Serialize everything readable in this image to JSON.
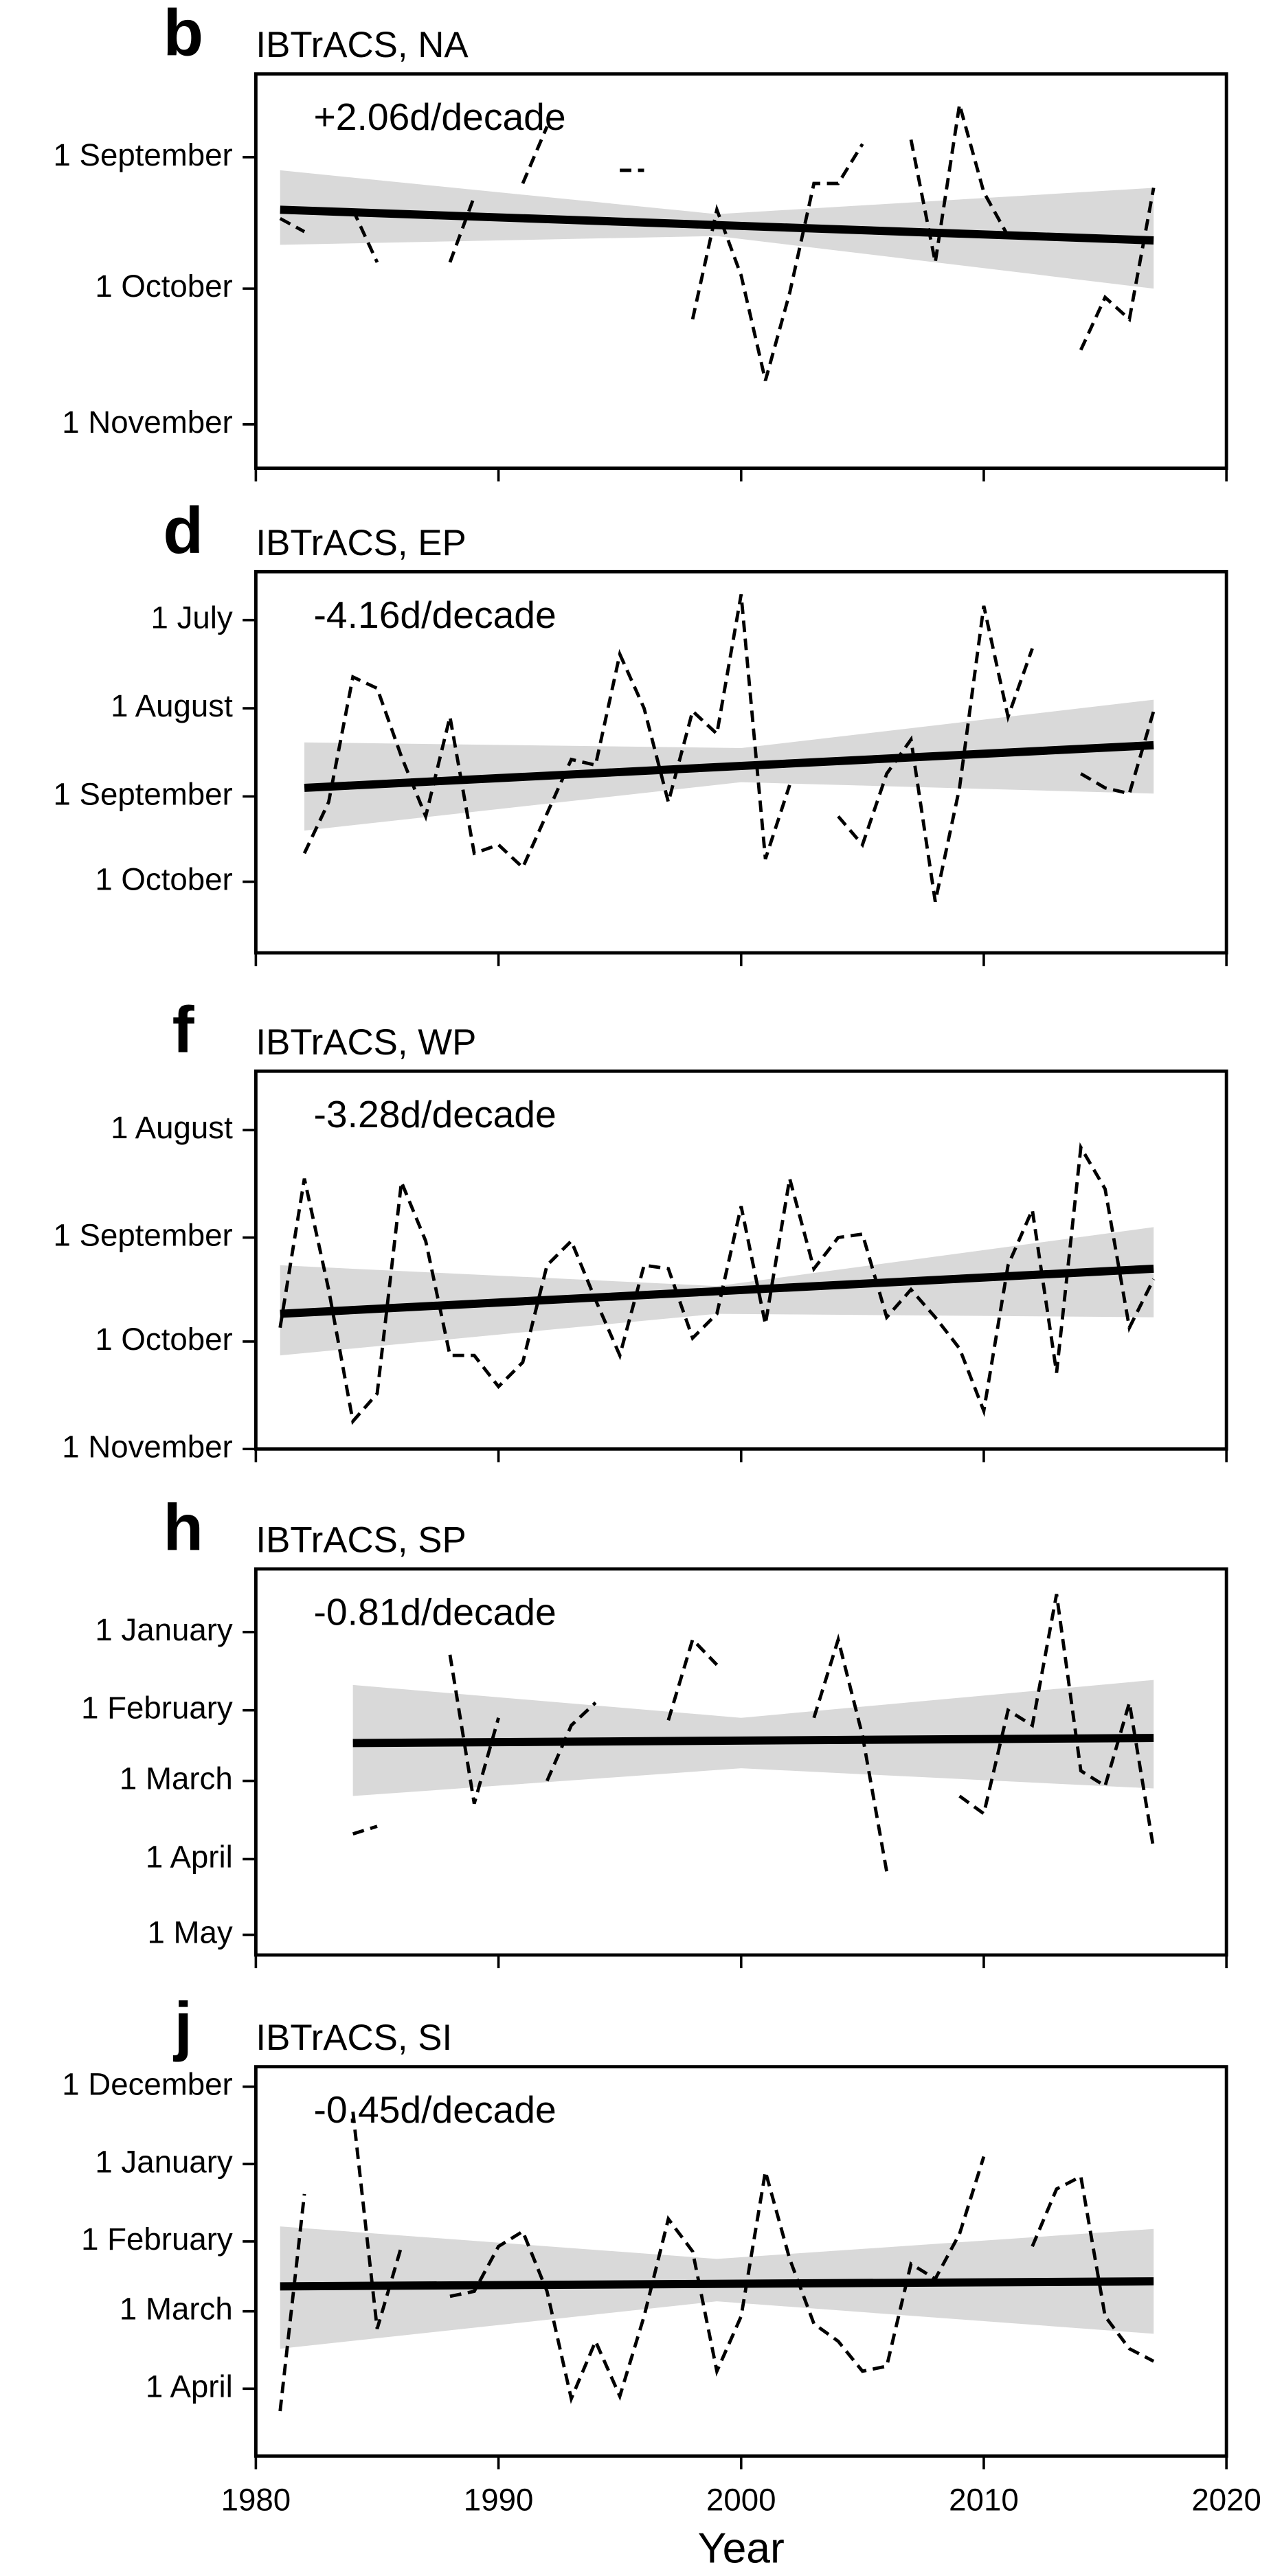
{
  "chart_data": [
    {
      "type": "line",
      "panel": "b",
      "title": "IBTrACS, NA",
      "annotation": "+2.06d/decade",
      "x": [
        1981,
        1982,
        1983,
        1984,
        1985,
        1986,
        1987,
        1988,
        1989,
        1990,
        1991,
        1992,
        1993,
        1994,
        1995,
        1996,
        1997,
        1998,
        1999,
        2000,
        2001,
        2002,
        2003,
        2004,
        2005,
        2006,
        2007,
        2008,
        2009,
        2010,
        2011,
        2012,
        2013,
        2014,
        2015,
        2016,
        2017
      ],
      "values": [
        258,
        261,
        null,
        256,
        268,
        null,
        null,
        268,
        253,
        null,
        250,
        237,
        null,
        null,
        247,
        247,
        null,
        281,
        256,
        271,
        295,
        275,
        250,
        250,
        241,
        null,
        240,
        268,
        232,
        252,
        262,
        null,
        null,
        288,
        276,
        281,
        251
      ],
      "color": "#000000",
      "trend": {
        "x": [
          1981,
          2017
        ],
        "values": [
          256,
          263
        ],
        "color": "#000000"
      },
      "band": {
        "x": [
          1981,
          1999,
          2017
        ],
        "lower": [
          247,
          257,
          251
        ],
        "upper": [
          264,
          262,
          274
        ],
        "color": "#d9d9d9"
      },
      "xlim": [
        1980,
        2020
      ],
      "xticks": [
        1980,
        1990,
        2000,
        2010,
        2020
      ],
      "show_xtick_labels": false,
      "ylim": [
        225,
        315
      ],
      "yinvert": true,
      "yticks": [
        {
          "value": 244,
          "label": "1 September"
        },
        {
          "value": 274,
          "label": "1 October"
        },
        {
          "value": 305,
          "label": "1 November"
        }
      ]
    },
    {
      "type": "line",
      "panel": "d",
      "title": "IBTrACS, EP",
      "annotation": "-4.16d/decade",
      "x": [
        1981,
        1982,
        1983,
        1984,
        1985,
        1986,
        1987,
        1988,
        1989,
        1990,
        1991,
        1992,
        1993,
        1994,
        1995,
        1996,
        1997,
        1998,
        1999,
        2000,
        2001,
        2002,
        2003,
        2004,
        2005,
        2006,
        2007,
        2008,
        2009,
        2010,
        2011,
        2012,
        2013,
        2014,
        2015,
        2016,
        2017
      ],
      "values": [
        null,
        264,
        246,
        202,
        206,
        230,
        251,
        216,
        264,
        261,
        269,
        250,
        231,
        233,
        194,
        213,
        246,
        214,
        222,
        173,
        266,
        240,
        null,
        251,
        261,
        236,
        224,
        281,
        241,
        177,
        216,
        192,
        null,
        236,
        241,
        243,
        214
      ],
      "color": "#000000",
      "trend": {
        "x": [
          1982,
          2017
        ],
        "values": [
          241,
          226
        ],
        "color": "#000000"
      },
      "band": {
        "x": [
          1982,
          2000,
          2017
        ],
        "lower": [
          225,
          227,
          210
        ],
        "upper": [
          256,
          239,
          243
        ],
        "color": "#d9d9d9"
      },
      "xlim": [
        1980,
        2020
      ],
      "xticks": [
        1980,
        1990,
        2000,
        2010,
        2020
      ],
      "show_xtick_labels": false,
      "ylim": [
        165,
        299
      ],
      "yinvert": true,
      "yticks": [
        {
          "value": 182,
          "label": "1 July"
        },
        {
          "value": 213,
          "label": "1 August"
        },
        {
          "value": 244,
          "label": "1 September"
        },
        {
          "value": 274,
          "label": "1 October"
        }
      ]
    },
    {
      "type": "line",
      "panel": "f",
      "title": "IBTrACS, WP",
      "annotation": "-3.28d/decade",
      "x": [
        1981,
        1982,
        1983,
        1984,
        1985,
        1986,
        1987,
        1988,
        1989,
        1990,
        1991,
        1992,
        1993,
        1994,
        1995,
        1996,
        1997,
        1998,
        1999,
        2000,
        2001,
        2002,
        2003,
        2004,
        2005,
        2006,
        2007,
        2008,
        2009,
        2010,
        2011,
        2012,
        2013,
        2014,
        2015,
        2016,
        2017
      ],
      "values": [
        270,
        227,
        259,
        297,
        289,
        228,
        245,
        278,
        278,
        287,
        280,
        252,
        245,
        262,
        278,
        252,
        253,
        273,
        266,
        235,
        269,
        227,
        253,
        244,
        243,
        267,
        259,
        267,
        276,
        294,
        252,
        236,
        283,
        218,
        230,
        270,
        256
      ],
      "color": "#000000",
      "trend": {
        "x": [
          1981,
          2017
        ],
        "values": [
          266,
          253
        ],
        "color": "#000000"
      },
      "band": {
        "x": [
          1981,
          1999,
          2017
        ],
        "lower": [
          252,
          258,
          241
        ],
        "upper": [
          278,
          266,
          267
        ],
        "color": "#d9d9d9"
      },
      "xlim": [
        1980,
        2020
      ],
      "xticks": [
        1980,
        1990,
        2000,
        2010,
        2020
      ],
      "show_xtick_labels": false,
      "ylim": [
        196,
        305
      ],
      "yinvert": true,
      "yticks": [
        {
          "value": 213,
          "label": "1 August"
        },
        {
          "value": 244,
          "label": "1 September"
        },
        {
          "value": 274,
          "label": "1 October"
        },
        {
          "value": 305,
          "label": "1 November"
        }
      ]
    },
    {
      "type": "line",
      "panel": "h",
      "title": "IBTrACS, SP",
      "annotation": "-0.81d/decade",
      "x": [
        1981,
        1982,
        1983,
        1984,
        1985,
        1986,
        1987,
        1988,
        1989,
        1990,
        1991,
        1992,
        1993,
        1994,
        1995,
        1996,
        1997,
        1998,
        1999,
        2000,
        2001,
        2002,
        2003,
        2004,
        2005,
        2006,
        2007,
        2008,
        2009,
        2010,
        2011,
        2012,
        2013,
        2014,
        2015,
        2016,
        2017
      ],
      "values": [
        null,
        null,
        null,
        446,
        443,
        null,
        null,
        375,
        434,
        400,
        null,
        425,
        403,
        394,
        null,
        null,
        401,
        369,
        379,
        null,
        null,
        null,
        400,
        369,
        407,
        461,
        null,
        null,
        431,
        438,
        397,
        403,
        351,
        421,
        427,
        394,
        452
      ],
      "color": "#000000",
      "trend": {
        "x": [
          1984,
          2017
        ],
        "values": [
          410,
          408
        ],
        "color": "#000000"
      },
      "band": {
        "x": [
          1984,
          2000,
          2017
        ],
        "lower": [
          387,
          400,
          385
        ],
        "upper": [
          431,
          420,
          428
        ],
        "color": "#d9d9d9"
      },
      "xlim": [
        1980,
        2020
      ],
      "xticks": [
        1980,
        1990,
        2000,
        2010,
        2020
      ],
      "show_xtick_labels": false,
      "ylim": [
        341,
        494
      ],
      "yinvert": true,
      "yticks": [
        {
          "value": 366,
          "label": "1 January"
        },
        {
          "value": 397,
          "label": "1 February"
        },
        {
          "value": 425,
          "label": "1 March"
        },
        {
          "value": 456,
          "label": "1 April"
        },
        {
          "value": 486,
          "label": "1 May"
        }
      ]
    },
    {
      "type": "line",
      "panel": "j",
      "title": "IBTrACS, SI",
      "annotation": "-0.45d/decade",
      "xlabel": "Year",
      "x": [
        1981,
        1982,
        1983,
        1984,
        1985,
        1986,
        1987,
        1988,
        1989,
        1990,
        1991,
        1992,
        1993,
        1994,
        1995,
        1996,
        1997,
        1998,
        1999,
        2000,
        2001,
        2002,
        2003,
        2004,
        2005,
        2006,
        2007,
        2008,
        2009,
        2010,
        2011,
        2012,
        2013,
        2014,
        2015,
        2016,
        2017
      ],
      "values": [
        465,
        378,
        null,
        345,
        432,
        399,
        null,
        419,
        417,
        399,
        393,
        417,
        460,
        437,
        459,
        427,
        388,
        401,
        449,
        427,
        369,
        404,
        430,
        437,
        449,
        447,
        406,
        412,
        394,
        363,
        null,
        399,
        376,
        371,
        427,
        440,
        445
      ],
      "color": "#000000",
      "trend": {
        "x": [
          1981,
          2017
        ],
        "values": [
          415,
          413
        ],
        "color": "#000000"
      },
      "band": {
        "x": [
          1981,
          1999,
          2017
        ],
        "lower": [
          391,
          404,
          392
        ],
        "upper": [
          440,
          421,
          434
        ],
        "color": "#d9d9d9"
      },
      "xlim": [
        1980,
        2020
      ],
      "xticks": [
        1980,
        1990,
        2000,
        2010,
        2020
      ],
      "show_xtick_labels": true,
      "ylim": [
        327,
        483
      ],
      "yinvert": true,
      "yticks": [
        {
          "value": 335,
          "label": "1 December"
        },
        {
          "value": 366,
          "label": "1 January"
        },
        {
          "value": 397,
          "label": "1 February"
        },
        {
          "value": 425,
          "label": "1 March"
        },
        {
          "value": 456,
          "label": "1 April"
        }
      ]
    }
  ]
}
